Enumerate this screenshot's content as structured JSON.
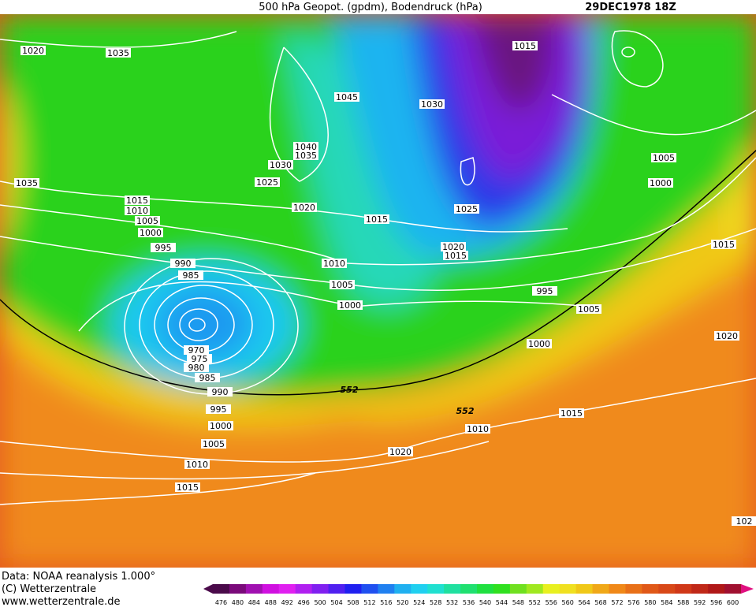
{
  "header": {
    "title": "500 hPa Geopot. (gpdm), Bodendruck (hPa)",
    "date": "29DEC1978 18Z"
  },
  "isobar_labels": [
    1020,
    1035,
    1015,
    1045,
    1030,
    1040,
    1035,
    1030,
    1025,
    1035,
    1005,
    1000,
    1015,
    1010,
    1020,
    1015,
    1025,
    1005,
    1000,
    995,
    1020,
    1015,
    1015,
    990,
    985,
    1010,
    1005,
    995,
    1000,
    1005,
    1020,
    1000,
    970,
    975,
    980,
    985,
    990,
    995,
    1015,
    1000,
    1010,
    1005,
    1020,
    1010,
    1015,
    102
  ],
  "contour_labels": [
    552,
    552
  ],
  "footer": [
    "Data: NOAA reanalysis 1.000°",
    "(C) Wetterzentrale",
    "www.wetterzentrale.de"
  ],
  "colorbar": [
    476,
    480,
    484,
    488,
    492,
    496,
    500,
    504,
    508,
    512,
    516,
    520,
    524,
    528,
    532,
    536,
    540,
    544,
    548,
    552,
    556,
    560,
    564,
    568,
    572,
    576,
    580,
    584,
    588,
    592,
    596,
    600
  ]
}
